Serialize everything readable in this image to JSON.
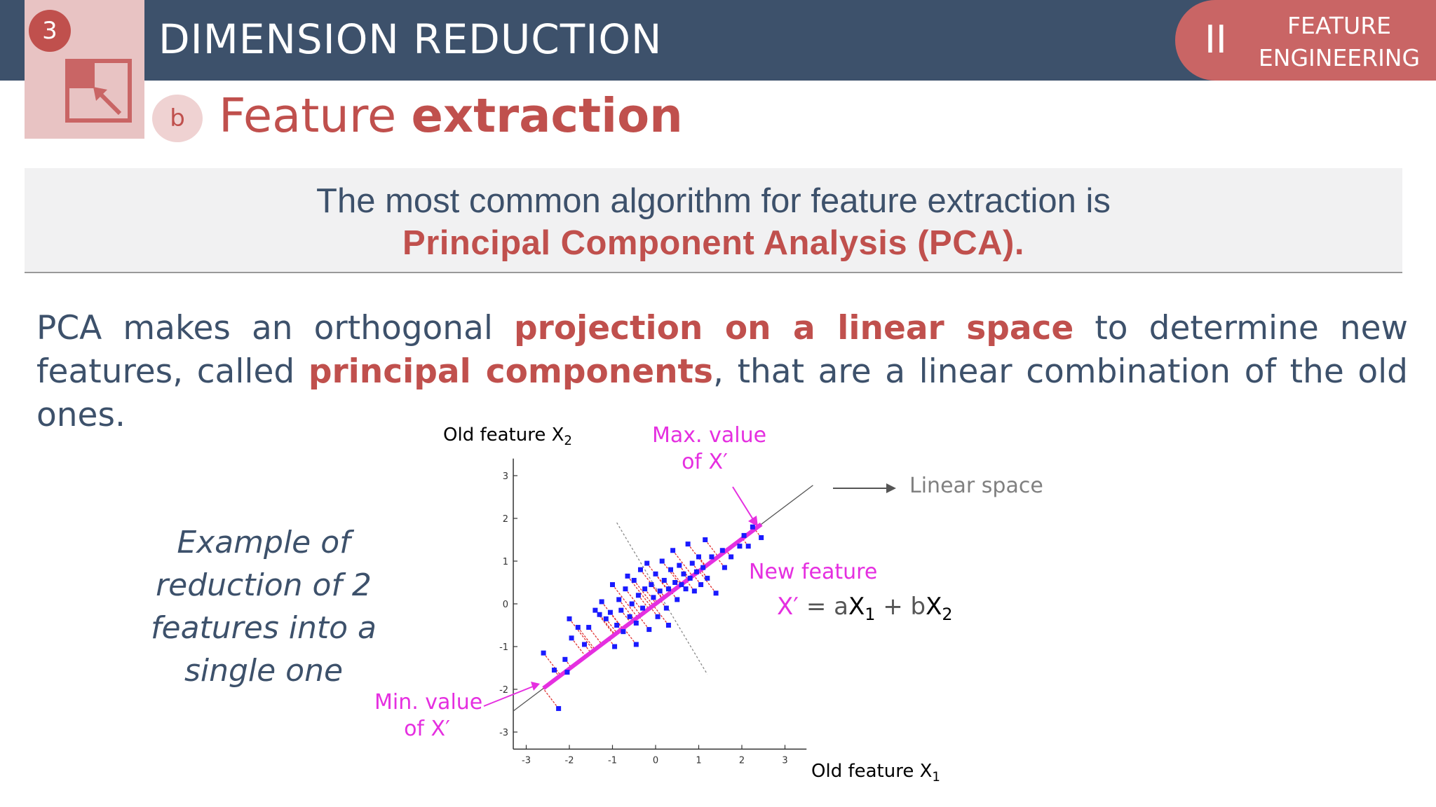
{
  "header": {
    "section_number": "3",
    "chapter_title": "DIMENSION REDUCTION",
    "part_roman": "II",
    "part_label_line1": "FEATURE",
    "part_label_line2": "ENGINEERING",
    "section_icon": "resize-arrow-icon"
  },
  "subheader": {
    "badge": "b",
    "title_light": "Feature ",
    "title_bold": "extraction"
  },
  "callout": {
    "line1": "The most common algorithm for feature extraction is",
    "line2": "Principal Component Analysis (PCA)."
  },
  "body": {
    "p1_a": "PCA makes an orthogonal ",
    "p1_hl": "projection on a linear space",
    "p1_b": " to determine new features, called ",
    "p1_hl2": "principal components",
    "p1_c": ", that are a linear combination of the old ones."
  },
  "example": {
    "text": "Example of reduction of 2 features into a single one"
  },
  "figure": {
    "y_axis_label": "Old feature X",
    "y_axis_sub": "2",
    "x_axis_label": "Old feature X",
    "x_axis_sub": "1",
    "max_label_line1": "Max. value",
    "max_label_line2": "of X′",
    "min_label_line1": "Min. value",
    "min_label_line2": "of X′",
    "linear_space_label": "Linear space",
    "new_feature_label": "New feature",
    "formula_lhs": "X′",
    "formula_eq": " = a",
    "formula_x1": "X",
    "formula_sub1": "1",
    "formula_plus": " + b",
    "formula_x2": "X",
    "formula_sub2": "2",
    "colors": {
      "points": "#1a1aff",
      "projection": "#e52fe0",
      "residuals": "#e03030"
    }
  },
  "chart_data": {
    "type": "scatter",
    "x_ticks": [
      "-3",
      "-2",
      "-1",
      "0",
      "1",
      "2",
      "3"
    ],
    "y_ticks": [
      "3",
      "2",
      "1",
      "0",
      "-1",
      "-2",
      "-3"
    ],
    "xlim": [
      -3.3,
      3.5
    ],
    "ylim": [
      -3.4,
      3.4
    ],
    "principal_axis": {
      "slope": 0.76,
      "min_x": -2.6,
      "max_x": 2.45
    },
    "points": [
      [
        -2.6,
        -1.15
      ],
      [
        -2.35,
        -1.55
      ],
      [
        -2.25,
        -2.45
      ],
      [
        -2.1,
        -1.3
      ],
      [
        -2.05,
        -1.6
      ],
      [
        -2.0,
        -0.35
      ],
      [
        -1.95,
        -0.8
      ],
      [
        -1.8,
        -0.55
      ],
      [
        -1.65,
        -0.95
      ],
      [
        -1.55,
        -0.55
      ],
      [
        -1.4,
        -0.15
      ],
      [
        -1.3,
        -0.25
      ],
      [
        -1.25,
        0.05
      ],
      [
        -1.15,
        -0.35
      ],
      [
        -1.05,
        -0.2
      ],
      [
        -1.0,
        0.45
      ],
      [
        -0.95,
        -1.0
      ],
      [
        -0.9,
        -0.5
      ],
      [
        -0.85,
        0.1
      ],
      [
        -0.8,
        -0.15
      ],
      [
        -0.75,
        -0.65
      ],
      [
        -0.7,
        0.35
      ],
      [
        -0.65,
        0.65
      ],
      [
        -0.6,
        -0.3
      ],
      [
        -0.55,
        0.0
      ],
      [
        -0.5,
        0.55
      ],
      [
        -0.45,
        -0.45
      ],
      [
        -0.4,
        0.2
      ],
      [
        -0.35,
        0.8
      ],
      [
        -0.3,
        -0.1
      ],
      [
        -0.25,
        0.35
      ],
      [
        -0.2,
        0.95
      ],
      [
        -0.15,
        -0.6
      ],
      [
        -0.1,
        0.45
      ],
      [
        -0.05,
        0.15
      ],
      [
        0.0,
        0.7
      ],
      [
        0.05,
        -0.3
      ],
      [
        0.1,
        0.3
      ],
      [
        0.15,
        1.0
      ],
      [
        0.2,
        0.55
      ],
      [
        0.25,
        -0.1
      ],
      [
        0.3,
        0.35
      ],
      [
        0.35,
        0.8
      ],
      [
        0.4,
        1.25
      ],
      [
        0.45,
        0.5
      ],
      [
        0.5,
        0.1
      ],
      [
        0.55,
        0.9
      ],
      [
        0.6,
        0.45
      ],
      [
        0.65,
        0.7
      ],
      [
        0.7,
        0.35
      ],
      [
        0.75,
        1.4
      ],
      [
        0.8,
        0.6
      ],
      [
        0.85,
        0.95
      ],
      [
        0.9,
        0.3
      ],
      [
        0.95,
        0.75
      ],
      [
        1.0,
        1.1
      ],
      [
        1.05,
        0.45
      ],
      [
        1.1,
        0.85
      ],
      [
        1.15,
        1.5
      ],
      [
        1.2,
        0.6
      ],
      [
        1.3,
        1.1
      ],
      [
        1.4,
        0.25
      ],
      [
        1.55,
        1.25
      ],
      [
        1.75,
        1.1
      ],
      [
        1.95,
        1.35
      ],
      [
        2.05,
        1.6
      ],
      [
        2.15,
        1.35
      ],
      [
        2.25,
        1.8
      ],
      [
        2.45,
        1.55
      ],
      [
        1.6,
        0.85
      ],
      [
        -0.45,
        -0.95
      ],
      [
        0.3,
        -0.5
      ]
    ]
  }
}
